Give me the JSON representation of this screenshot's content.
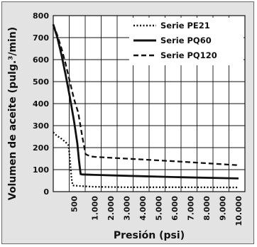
{
  "chart_data": {
    "type": "line",
    "xlabel": "Presión (psi)",
    "ylabel": "Volumen de aceite (pulg.³/min)",
    "x_ticks": [
      "500",
      "1.000",
      "2.000",
      "3.000",
      "4.000",
      "5.000",
      "6.000",
      "7.000",
      "8.000",
      "9.000",
      "10.000"
    ],
    "y_ticks": [
      "0",
      "100",
      "200",
      "300",
      "400",
      "500",
      "600",
      "700",
      "800"
    ],
    "ylim": [
      0,
      800
    ],
    "grid": true,
    "legend_position": "top-right",
    "series": [
      {
        "name": "Serie PE21",
        "style": "dotted",
        "points": [
          [
            0,
            270
          ],
          [
            80,
            255
          ],
          [
            200,
            240
          ],
          [
            300,
            225
          ],
          [
            370,
            210
          ],
          [
            400,
            150
          ],
          [
            440,
            60
          ],
          [
            470,
            28
          ],
          [
            700,
            25
          ],
          [
            1000,
            22
          ],
          [
            3000,
            20
          ],
          [
            6000,
            20
          ],
          [
            10000,
            19
          ]
        ]
      },
      {
        "name": "Serie PQ60",
        "style": "solid",
        "points": [
          [
            0,
            760
          ],
          [
            100,
            700
          ],
          [
            200,
            620
          ],
          [
            300,
            530
          ],
          [
            400,
            430
          ],
          [
            500,
            320
          ],
          [
            580,
            220
          ],
          [
            620,
            140
          ],
          [
            660,
            80
          ],
          [
            700,
            78
          ],
          [
            1000,
            76
          ],
          [
            3000,
            72
          ],
          [
            6000,
            66
          ],
          [
            10000,
            60
          ]
        ]
      },
      {
        "name": "Serie PQ120",
        "style": "dashed",
        "points": [
          [
            0,
            760
          ],
          [
            100,
            710
          ],
          [
            200,
            650
          ],
          [
            300,
            580
          ],
          [
            400,
            500
          ],
          [
            500,
            420
          ],
          [
            600,
            360
          ],
          [
            700,
            250
          ],
          [
            780,
            170
          ],
          [
            900,
            160
          ],
          [
            1000,
            158
          ],
          [
            3000,
            150
          ],
          [
            6000,
            138
          ],
          [
            10000,
            120
          ]
        ]
      }
    ]
  },
  "colors": {
    "background": "#e3e3e3",
    "plot_area": "#ffffff",
    "ink": "#111111"
  }
}
